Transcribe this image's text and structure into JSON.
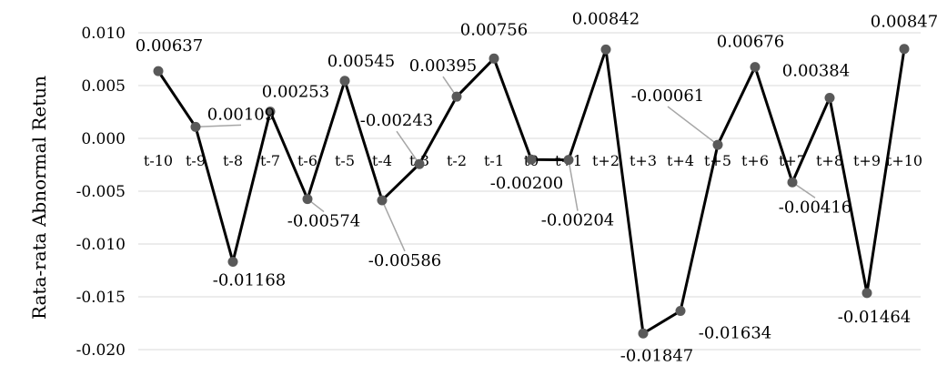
{
  "chart_data": {
    "type": "line",
    "title": "",
    "xlabel": "",
    "ylabel": "Rata-rata Abnormal Retun",
    "categories": [
      "t-10",
      "t-9",
      "t-8",
      "t-7",
      "t-6",
      "t-5",
      "t-4",
      "t-3",
      "t-2",
      "t-1",
      "t0",
      "t+1",
      "t+2",
      "t+3",
      "t+4",
      "t+5",
      "t+6",
      "t+7",
      "t+8",
      "t+9",
      "t+10"
    ],
    "values": [
      0.00637,
      0.00109,
      -0.01168,
      0.00253,
      -0.00574,
      0.00545,
      -0.00586,
      -0.00243,
      0.00395,
      0.00756,
      -0.002,
      -0.00204,
      0.00842,
      -0.01847,
      -0.01634,
      -0.00061,
      0.00676,
      -0.00416,
      0.00384,
      -0.01464,
      0.00847
    ],
    "data_labels": [
      "0.00637",
      "0.00109",
      "-0.01168",
      "0.00253",
      "-0.00574",
      "0.00545",
      "-0.00586",
      "-0.00243",
      "0.00395",
      "0.00756",
      "-0.00200",
      "-0.00204",
      "0.00842",
      "-0.01847",
      "-0.01634",
      "-0.00061",
      "0.00676",
      "-0.00416",
      "0.00384",
      "-0.01464",
      "0.00847"
    ],
    "ylim": [
      -0.02,
      0.01
    ],
    "yticks": [
      0.01,
      0.005,
      0.0,
      -0.005,
      -0.01,
      -0.015,
      -0.02
    ],
    "ytick_labels": [
      "0.010",
      "0.005",
      "0.000",
      "-0.005",
      "-0.010",
      "-0.015",
      "-0.020"
    ],
    "grid": true,
    "legend": "none",
    "colors": {
      "line": "#000000",
      "marker": "#595959",
      "grid": "#d9d9d9",
      "leader": "#a6a6a6"
    }
  }
}
